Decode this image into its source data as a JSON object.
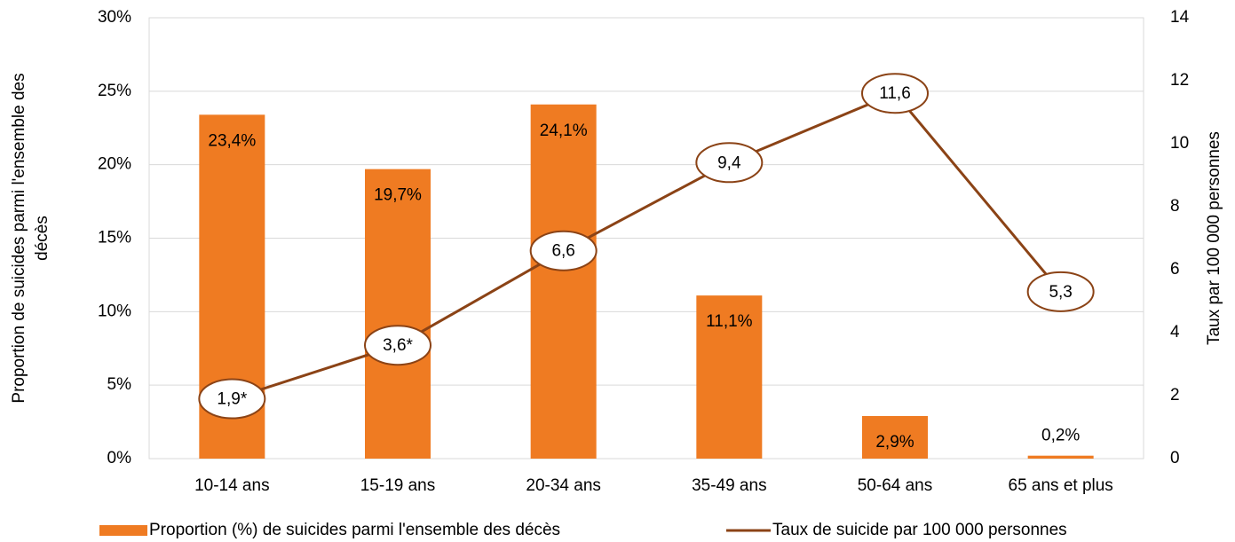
{
  "chart_data": {
    "type": "bar_line",
    "categories": [
      "10-14 ans",
      "15-19 ans",
      "20-34 ans",
      "35-49 ans",
      "50-64 ans",
      "65 ans et plus"
    ],
    "series": [
      {
        "name": "Proportion (%) de suicides parmi l'ensemble des décès",
        "type": "bar",
        "color": "#ef7b22",
        "values": [
          23.4,
          19.7,
          24.1,
          11.1,
          2.9,
          0.2
        ],
        "value_labels": [
          "23,4%",
          "19,7%",
          "24,1%",
          "11,1%",
          "2,9%",
          "0,2%"
        ]
      },
      {
        "name": "Taux de suicide par 100 000 personnes",
        "type": "line",
        "axis": "y2",
        "color": "#8b4316",
        "values": [
          1.9,
          3.6,
          6.6,
          9.4,
          11.6,
          5.3
        ],
        "value_labels": [
          "1,9*",
          "3,6*",
          "6,6",
          "9,4",
          "11,6",
          "5,3"
        ]
      }
    ],
    "y_label": [
      "Proportion de suicides parmi l'ensemble des",
      "décès"
    ],
    "y2_label": "Taux par 100 000 personnes",
    "ylim": [
      0,
      30
    ],
    "yticks": [
      {
        "value": 0,
        "label": "0%"
      },
      {
        "value": 5,
        "label": "5%"
      },
      {
        "value": 10,
        "label": "10%"
      },
      {
        "value": 15,
        "label": "15%"
      },
      {
        "value": 20,
        "label": "20%"
      },
      {
        "value": 25,
        "label": "25%"
      },
      {
        "value": 30,
        "label": "30%"
      }
    ],
    "y2lim": [
      0,
      14
    ],
    "y2ticks": [
      0,
      2,
      4,
      6,
      8,
      10,
      12,
      14
    ],
    "grid": true,
    "legend": "bottom"
  }
}
